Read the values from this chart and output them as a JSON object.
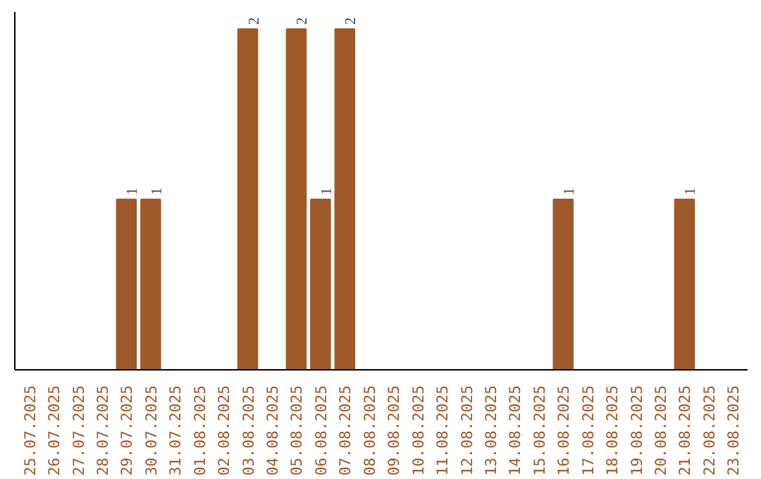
{
  "chart_data": {
    "type": "bar",
    "categories": [
      "25.07.2025",
      "26.07.2025",
      "27.07.2025",
      "28.07.2025",
      "29.07.2025",
      "30.07.2025",
      "31.07.2025",
      "01.08.2025",
      "02.08.2025",
      "03.08.2025",
      "04.08.2025",
      "05.08.2025",
      "06.08.2025",
      "07.08.2025",
      "08.08.2025",
      "09.08.2025",
      "10.08.2025",
      "11.08.2025",
      "12.08.2025",
      "13.08.2025",
      "14.08.2025",
      "15.08.2025",
      "16.08.2025",
      "17.08.2025",
      "18.08.2025",
      "19.08.2025",
      "20.08.2025",
      "21.08.2025",
      "22.08.2025",
      "23.08.2025"
    ],
    "values": [
      0,
      0,
      0,
      0,
      1,
      1,
      0,
      0,
      0,
      2,
      0,
      2,
      1,
      2,
      0,
      0,
      0,
      0,
      0,
      0,
      0,
      0,
      1,
      0,
      0,
      0,
      0,
      1,
      0,
      0
    ],
    "value_labels": [
      null,
      null,
      null,
      null,
      "1",
      "1",
      null,
      null,
      null,
      "2",
      null,
      "2",
      "1",
      "2",
      null,
      null,
      null,
      null,
      null,
      null,
      null,
      null,
      "1",
      null,
      null,
      null,
      null,
      "1",
      null,
      null
    ],
    "color": "#a0592a",
    "grid": false
  }
}
